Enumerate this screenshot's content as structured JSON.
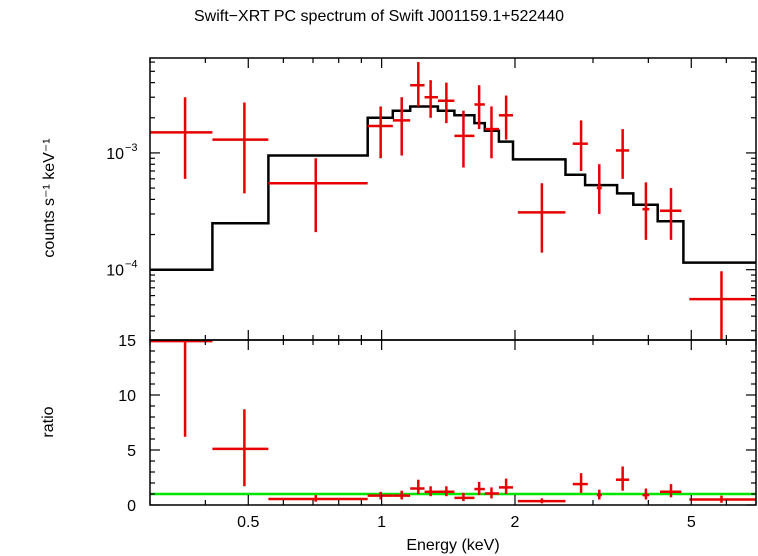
{
  "title": "Swift−XRT PC spectrum of Swift J001159.1+522440",
  "xlabel": "Energy (keV)",
  "colors": {
    "data": "#e60000",
    "model": "#000000",
    "ratio_line": "#00e600",
    "axes": "#000000"
  },
  "chart_data": [
    {
      "type": "scatter",
      "panel": "spectrum",
      "ylabel": "counts s⁻¹ keV⁻¹",
      "xscale": "log",
      "yscale": "log",
      "xlim": [
        0.3,
        7.0
      ],
      "ylim": [
        2.5e-05,
        0.0065
      ],
      "yticks_major": [
        {
          "value": 0.001,
          "mantissa": "10",
          "exp": "−3"
        },
        {
          "value": 0.0001,
          "mantissa": "10",
          "exp": "−4"
        }
      ],
      "series": [
        {
          "kind": "data_with_errors",
          "points": [
            {
              "x": 0.36,
              "xlo": 0.3,
              "xhi": 0.415,
              "y": 0.0015,
              "ylo": 0.0006,
              "yhi": 0.003
            },
            {
              "x": 0.49,
              "xlo": 0.415,
              "xhi": 0.555,
              "y": 0.0013,
              "ylo": 0.00045,
              "yhi": 0.0027
            },
            {
              "x": 0.71,
              "xlo": 0.555,
              "xhi": 0.93,
              "y": 0.00055,
              "ylo": 0.00021,
              "yhi": 0.0009
            },
            {
              "x": 0.995,
              "xlo": 0.93,
              "xhi": 1.06,
              "y": 0.0017,
              "ylo": 0.0009,
              "yhi": 0.0025
            },
            {
              "x": 1.11,
              "xlo": 1.06,
              "xhi": 1.16,
              "y": 0.0019,
              "ylo": 0.00095,
              "yhi": 0.003
            },
            {
              "x": 1.21,
              "xlo": 1.16,
              "xhi": 1.25,
              "y": 0.0038,
              "ylo": 0.0025,
              "yhi": 0.006
            },
            {
              "x": 1.29,
              "xlo": 1.25,
              "xhi": 1.34,
              "y": 0.003,
              "ylo": 0.002,
              "yhi": 0.0042
            },
            {
              "x": 1.4,
              "xlo": 1.34,
              "xhi": 1.46,
              "y": 0.0028,
              "ylo": 0.0018,
              "yhi": 0.004
            },
            {
              "x": 1.53,
              "xlo": 1.46,
              "xhi": 1.62,
              "y": 0.0014,
              "ylo": 0.00075,
              "yhi": 0.0023
            },
            {
              "x": 1.66,
              "xlo": 1.62,
              "xhi": 1.71,
              "y": 0.0026,
              "ylo": 0.0016,
              "yhi": 0.0038
            },
            {
              "x": 1.77,
              "xlo": 1.71,
              "xhi": 1.84,
              "y": 0.0016,
              "ylo": 0.0009,
              "yhi": 0.0025
            },
            {
              "x": 1.91,
              "xlo": 1.84,
              "xhi": 1.98,
              "y": 0.0021,
              "ylo": 0.0013,
              "yhi": 0.0031
            },
            {
              "x": 2.3,
              "xlo": 2.03,
              "xhi": 2.6,
              "y": 0.00031,
              "ylo": 0.00014,
              "yhi": 0.00055
            },
            {
              "x": 2.82,
              "xlo": 2.7,
              "xhi": 2.92,
              "y": 0.0012,
              "ylo": 0.0007,
              "yhi": 0.0019
            },
            {
              "x": 3.1,
              "xlo": 3.06,
              "xhi": 3.14,
              "y": 0.0005,
              "ylo": 0.0003,
              "yhi": 0.0008
            },
            {
              "x": 3.5,
              "xlo": 3.38,
              "xhi": 3.62,
              "y": 0.00105,
              "ylo": 0.0006,
              "yhi": 0.0016
            },
            {
              "x": 3.95,
              "xlo": 3.88,
              "xhi": 4.02,
              "y": 0.00033,
              "ylo": 0.00018,
              "yhi": 0.00056
            },
            {
              "x": 4.5,
              "xlo": 4.25,
              "xhi": 4.75,
              "y": 0.00032,
              "ylo": 0.00018,
              "yhi": 0.0005
            },
            {
              "x": 5.85,
              "xlo": 4.95,
              "xhi": 7.0,
              "y": 5.6e-05,
              "ylo": 2.5e-05,
              "yhi": 9.7e-05
            }
          ]
        },
        {
          "kind": "model_step",
          "steps": [
            {
              "xlo": 0.3,
              "xhi": 0.415,
              "y": 0.0001
            },
            {
              "xlo": 0.415,
              "xhi": 0.555,
              "y": 0.00025
            },
            {
              "xlo": 0.555,
              "xhi": 0.93,
              "y": 0.00095
            },
            {
              "xlo": 0.93,
              "xhi": 1.06,
              "y": 0.002
            },
            {
              "xlo": 1.06,
              "xhi": 1.16,
              "y": 0.0023
            },
            {
              "xlo": 1.16,
              "xhi": 1.25,
              "y": 0.0025
            },
            {
              "xlo": 1.25,
              "xhi": 1.34,
              "y": 0.0025
            },
            {
              "xlo": 1.34,
              "xhi": 1.46,
              "y": 0.0023
            },
            {
              "xlo": 1.46,
              "xhi": 1.62,
              "y": 0.0021
            },
            {
              "xlo": 1.62,
              "xhi": 1.71,
              "y": 0.0018
            },
            {
              "xlo": 1.71,
              "xhi": 1.84,
              "y": 0.00155
            },
            {
              "xlo": 1.84,
              "xhi": 1.98,
              "y": 0.00125
            },
            {
              "xlo": 1.98,
              "xhi": 2.6,
              "y": 0.00088
            },
            {
              "xlo": 2.6,
              "xhi": 2.88,
              "y": 0.00065
            },
            {
              "xlo": 2.88,
              "xhi": 3.4,
              "y": 0.00053
            },
            {
              "xlo": 3.4,
              "xhi": 3.7,
              "y": 0.00045
            },
            {
              "xlo": 3.7,
              "xhi": 4.2,
              "y": 0.00036
            },
            {
              "xlo": 4.2,
              "xhi": 4.8,
              "y": 0.00026
            },
            {
              "xlo": 4.8,
              "xhi": 7.0,
              "y": 0.000115
            }
          ]
        }
      ]
    },
    {
      "type": "scatter",
      "panel": "ratio",
      "ylabel": "ratio",
      "xscale": "log",
      "yscale": "linear",
      "xlim": [
        0.3,
        7.0
      ],
      "ylim": [
        0,
        15
      ],
      "yticks": [
        0,
        5,
        10,
        15
      ],
      "xticks": [
        {
          "value": 0.5,
          "label": "0.5"
        },
        {
          "value": 1,
          "label": "1"
        },
        {
          "value": 2,
          "label": "2"
        },
        {
          "value": 5,
          "label": "5"
        }
      ],
      "reference_line": 1,
      "series": [
        {
          "kind": "data_with_errors",
          "points": [
            {
              "x": 0.36,
              "xlo": 0.3,
              "xhi": 0.415,
              "y": 14.9,
              "ylo": 6.2,
              "yhi": 15.0
            },
            {
              "x": 0.49,
              "xlo": 0.415,
              "xhi": 0.555,
              "y": 5.1,
              "ylo": 1.7,
              "yhi": 8.7
            },
            {
              "x": 0.71,
              "xlo": 0.555,
              "xhi": 0.93,
              "y": 0.55,
              "ylo": 0.3,
              "yhi": 0.9
            },
            {
              "x": 0.995,
              "xlo": 0.93,
              "xhi": 1.06,
              "y": 0.85,
              "ylo": 0.5,
              "yhi": 1.2
            },
            {
              "x": 1.11,
              "xlo": 1.06,
              "xhi": 1.16,
              "y": 0.85,
              "ylo": 0.5,
              "yhi": 1.3
            },
            {
              "x": 1.21,
              "xlo": 1.16,
              "xhi": 1.25,
              "y": 1.5,
              "ylo": 1.0,
              "yhi": 2.3
            },
            {
              "x": 1.29,
              "xlo": 1.25,
              "xhi": 1.34,
              "y": 1.2,
              "ylo": 0.8,
              "yhi": 1.7
            },
            {
              "x": 1.4,
              "xlo": 1.34,
              "xhi": 1.46,
              "y": 1.2,
              "ylo": 0.8,
              "yhi": 1.7
            },
            {
              "x": 1.53,
              "xlo": 1.46,
              "xhi": 1.62,
              "y": 0.65,
              "ylo": 0.35,
              "yhi": 1.1
            },
            {
              "x": 1.66,
              "xlo": 1.62,
              "xhi": 1.71,
              "y": 1.45,
              "ylo": 0.9,
              "yhi": 2.1
            },
            {
              "x": 1.77,
              "xlo": 1.71,
              "xhi": 1.84,
              "y": 1.05,
              "ylo": 0.6,
              "yhi": 1.6
            },
            {
              "x": 1.91,
              "xlo": 1.84,
              "xhi": 1.98,
              "y": 1.6,
              "ylo": 1.0,
              "yhi": 2.4
            },
            {
              "x": 2.3,
              "xlo": 2.03,
              "xhi": 2.6,
              "y": 0.35,
              "ylo": 0.15,
              "yhi": 0.6
            },
            {
              "x": 2.82,
              "xlo": 2.7,
              "xhi": 2.92,
              "y": 1.9,
              "ylo": 1.1,
              "yhi": 2.9
            },
            {
              "x": 3.1,
              "xlo": 3.06,
              "xhi": 3.14,
              "y": 0.9,
              "ylo": 0.5,
              "yhi": 1.4
            },
            {
              "x": 3.5,
              "xlo": 3.38,
              "xhi": 3.62,
              "y": 2.3,
              "ylo": 1.3,
              "yhi": 3.5
            },
            {
              "x": 3.95,
              "xlo": 3.88,
              "xhi": 4.02,
              "y": 0.9,
              "ylo": 0.5,
              "yhi": 1.5
            },
            {
              "x": 4.5,
              "xlo": 4.25,
              "xhi": 4.75,
              "y": 1.2,
              "ylo": 0.7,
              "yhi": 1.9
            },
            {
              "x": 5.85,
              "xlo": 4.95,
              "xhi": 7.0,
              "y": 0.5,
              "ylo": 0.2,
              "yhi": 0.85
            }
          ]
        }
      ]
    }
  ]
}
